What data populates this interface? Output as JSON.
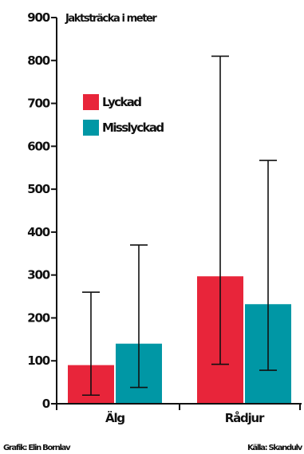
{
  "chart_data": {
    "type": "bar",
    "ylabel": "Jaktsträcka i meter",
    "ylim": [
      0,
      900
    ],
    "yticks": [
      0,
      100,
      200,
      300,
      400,
      500,
      600,
      700,
      800,
      900
    ],
    "categories": [
      "Älg",
      "Rådjur"
    ],
    "series": [
      {
        "name": "Lyckad",
        "color": "#e8253a",
        "values": [
          90,
          297
        ],
        "error_low": [
          20,
          92
        ],
        "error_high": [
          260,
          810
        ]
      },
      {
        "name": "Misslyckad",
        "color": "#0097a5",
        "values": [
          140,
          232
        ],
        "error_low": [
          38,
          78
        ],
        "error_high": [
          370,
          567
        ]
      }
    ],
    "legend_position": "top-left",
    "grid": false,
    "error_bars": true
  },
  "footer": {
    "credit_left": "Grafik: Elin Bornlav",
    "credit_right": "Källa: Skandulv"
  }
}
